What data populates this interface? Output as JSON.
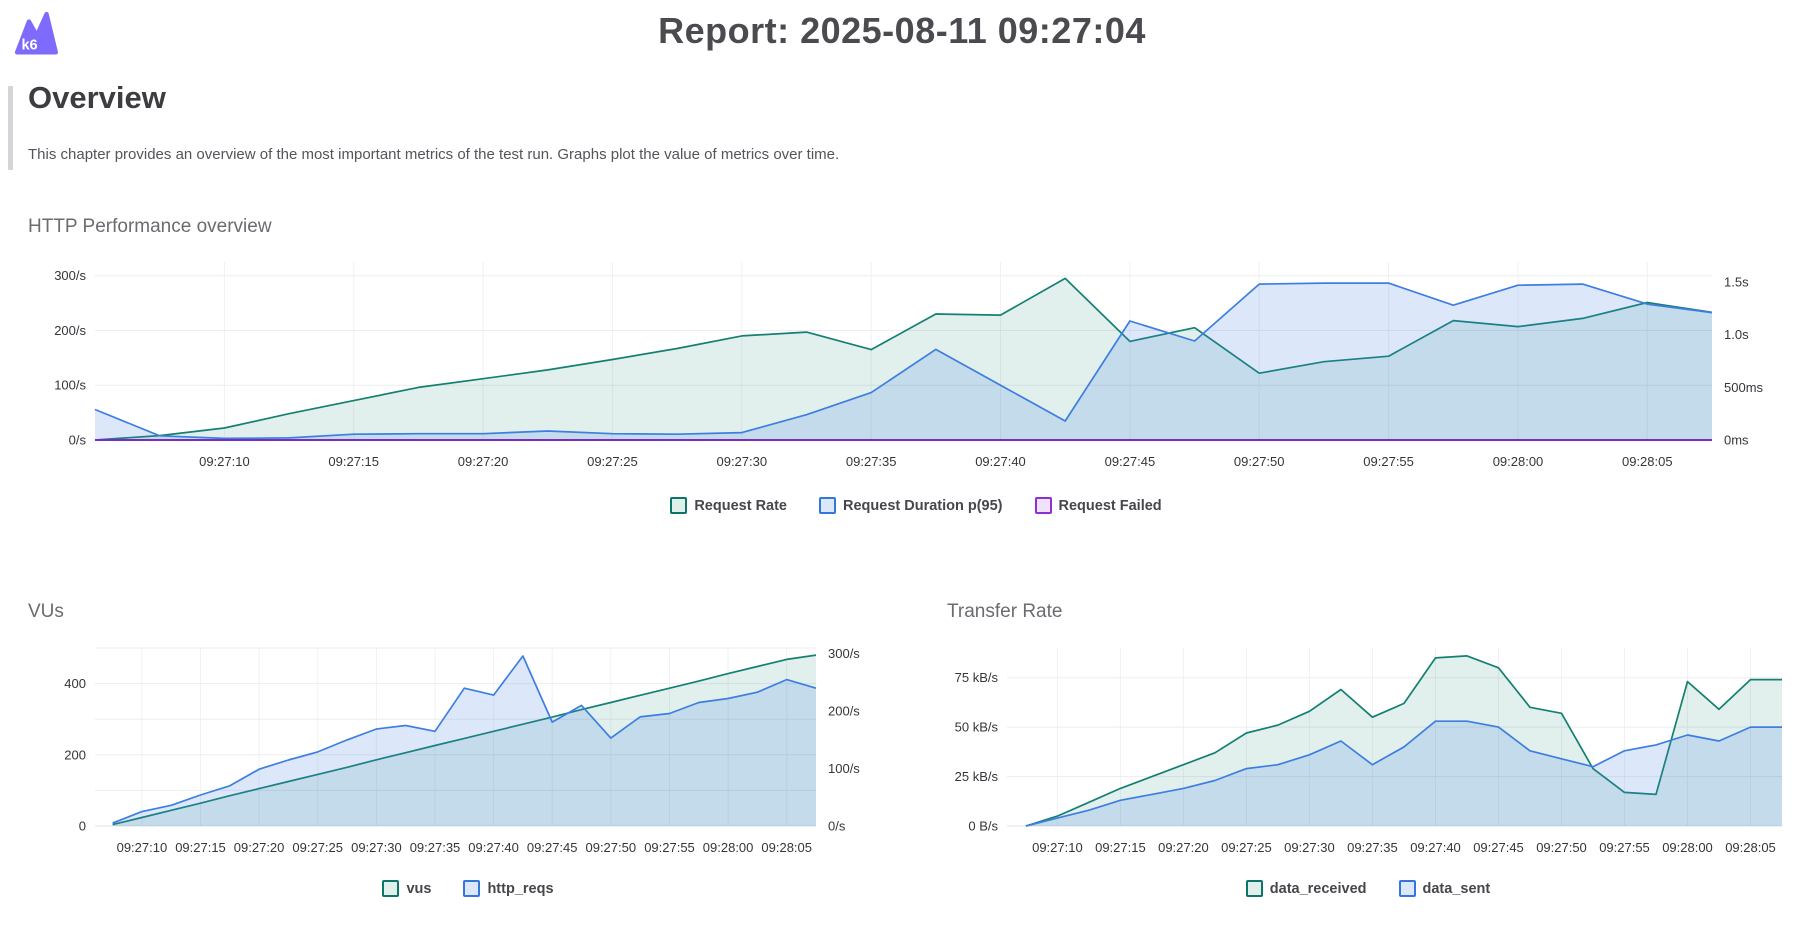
{
  "header": {
    "title": "Report: 2025-08-11 09:27:04",
    "logo_text": "k6",
    "logo_color": "#7e6bfb"
  },
  "overview": {
    "heading": "Overview",
    "description": "This chapter provides an overview of the most important metrics of the test run. Graphs plot the value of metrics over time."
  },
  "colors": {
    "teal": {
      "line": "#158072",
      "fill": "rgba(21,128,114,0.13)",
      "legend_border": "#0c7468",
      "legend_fill": "#e1efec"
    },
    "blue": {
      "line": "#3d7ee0",
      "fill": "rgba(61,126,224,0.18)",
      "legend_border": "#3575de",
      "legend_fill": "#dbe8fb"
    },
    "purple": {
      "line": "#7c2bbf",
      "fill": "none",
      "legend_border": "#8d2fd2",
      "legend_fill": "#efe2fa"
    }
  },
  "chart_data": [
    {
      "type": "area",
      "title": "HTTP Performance overview",
      "x_unit": "seconds after 09:27:00",
      "x_domain": [
        5,
        67.5
      ],
      "x": [
        5,
        7.5,
        10,
        12.5,
        15,
        17.5,
        20,
        22.5,
        25,
        27.5,
        30,
        32.5,
        35,
        37.5,
        40,
        42.5,
        45,
        47.5,
        50,
        52.5,
        55,
        57.5,
        60,
        62.5,
        65,
        67.5
      ],
      "x_ticks": [
        [
          10,
          "09:27:10"
        ],
        [
          15,
          "09:27:15"
        ],
        [
          20,
          "09:27:20"
        ],
        [
          25,
          "09:27:25"
        ],
        [
          30,
          "09:27:30"
        ],
        [
          35,
          "09:27:35"
        ],
        [
          40,
          "09:27:40"
        ],
        [
          45,
          "09:27:45"
        ],
        [
          50,
          "09:27:50"
        ],
        [
          55,
          "09:27:55"
        ],
        [
          60,
          "09:28:00"
        ],
        [
          65,
          "09:28:05"
        ]
      ],
      "left_axis": {
        "label": "requests per second",
        "domain": [
          0,
          325
        ],
        "ticks": [
          [
            0,
            "0/s"
          ],
          [
            100,
            "100/s"
          ],
          [
            200,
            "200/s"
          ],
          [
            300,
            "300/s"
          ]
        ],
        "grid": [
          100,
          200,
          300
        ]
      },
      "right_axis": {
        "label": "request duration",
        "domain": [
          0,
          1690
        ],
        "ticks": [
          [
            0,
            "0ms"
          ],
          [
            500,
            "500ms"
          ],
          [
            1000,
            "1.0s"
          ],
          [
            1500,
            "1.5s"
          ]
        ]
      },
      "series": [
        {
          "name": "Request Rate",
          "color": "teal",
          "axis": "left",
          "values": [
            0,
            8,
            22,
            48,
            72,
            96,
            112,
            128,
            147,
            167,
            190,
            197,
            165,
            230,
            228,
            295,
            180,
            205,
            122,
            143,
            153,
            218,
            207,
            222,
            251,
            233
          ]
        },
        {
          "name": "Request Duration p(95)",
          "color": "blue",
          "axis": "right",
          "values": [
            290,
            40,
            15,
            20,
            55,
            60,
            60,
            85,
            60,
            55,
            70,
            240,
            450,
            860,
            520,
            180,
            1130,
            940,
            1480,
            1490,
            1490,
            1280,
            1470,
            1480,
            1290,
            1210
          ]
        },
        {
          "name": "Request Failed",
          "color": "purple",
          "axis": "left",
          "width": 2,
          "values": [
            0,
            0,
            0,
            0,
            0,
            0,
            0,
            0,
            0,
            0,
            0,
            0,
            0,
            0,
            0,
            0,
            0,
            0,
            0,
            0,
            0,
            0,
            0,
            0,
            0,
            0
          ]
        }
      ]
    },
    {
      "type": "area",
      "title": "VUs",
      "x_unit": "seconds after 09:27:00",
      "x_domain": [
        6,
        67.5
      ],
      "x": [
        7.5,
        10,
        12.5,
        15,
        17.5,
        20,
        22.5,
        25,
        27.5,
        30,
        32.5,
        35,
        37.5,
        40,
        42.5,
        45,
        47.5,
        50,
        52.5,
        55,
        57.5,
        60,
        62.5,
        65,
        67.5
      ],
      "x_ticks": [
        [
          10,
          "09:27:10"
        ],
        [
          15,
          "09:27:15"
        ],
        [
          20,
          "09:27:20"
        ],
        [
          25,
          "09:27:25"
        ],
        [
          30,
          "09:27:30"
        ],
        [
          35,
          "09:27:35"
        ],
        [
          40,
          "09:27:40"
        ],
        [
          45,
          "09:27:45"
        ],
        [
          50,
          "09:27:50"
        ],
        [
          55,
          "09:27:55"
        ],
        [
          60,
          "09:28:00"
        ],
        [
          65,
          "09:28:05"
        ]
      ],
      "left_axis": {
        "label": "virtual users",
        "domain": [
          0,
          500
        ],
        "ticks": [
          [
            0,
            "0"
          ],
          [
            200,
            "200"
          ],
          [
            400,
            "400"
          ]
        ],
        "grid": [
          100,
          200,
          300,
          400,
          500
        ]
      },
      "right_axis": {
        "label": "requests per second",
        "domain": [
          0,
          310
        ],
        "ticks": [
          [
            0,
            "0/s"
          ],
          [
            100,
            "100/s"
          ],
          [
            200,
            "200/s"
          ],
          [
            300,
            "300/s"
          ]
        ]
      },
      "series": [
        {
          "name": "vus",
          "color": "teal",
          "axis": "left",
          "values": [
            4,
            24,
            44,
            64,
            85,
            105,
            125,
            145,
            165,
            186,
            206,
            226,
            246,
            266,
            286,
            306,
            327,
            347,
            367,
            387,
            407,
            428,
            448,
            468,
            480
          ]
        },
        {
          "name": "http_reqs",
          "color": "blue",
          "axis": "right",
          "values": [
            5,
            25,
            36,
            54,
            70,
            99,
            115,
            129,
            150,
            169,
            175,
            165,
            240,
            228,
            296,
            181,
            210,
            153,
            190,
            196,
            215,
            222,
            233,
            255,
            240
          ]
        }
      ]
    },
    {
      "type": "area",
      "title": "Transfer Rate",
      "x_unit": "seconds after 09:27:00",
      "x_domain": [
        6,
        67.5
      ],
      "x": [
        7.5,
        10,
        12.5,
        15,
        17.5,
        20,
        22.5,
        25,
        27.5,
        30,
        32.5,
        35,
        37.5,
        40,
        42.5,
        45,
        47.5,
        50,
        52.5,
        55,
        57.5,
        60,
        62.5,
        65,
        67.5
      ],
      "x_ticks": [
        [
          10,
          "09:27:10"
        ],
        [
          15,
          "09:27:15"
        ],
        [
          20,
          "09:27:20"
        ],
        [
          25,
          "09:27:25"
        ],
        [
          30,
          "09:27:30"
        ],
        [
          35,
          "09:27:35"
        ],
        [
          40,
          "09:27:40"
        ],
        [
          45,
          "09:27:45"
        ],
        [
          50,
          "09:27:50"
        ],
        [
          55,
          "09:27:55"
        ],
        [
          60,
          "09:28:00"
        ],
        [
          65,
          "09:28:05"
        ]
      ],
      "left_axis": {
        "label": "kilobytes per second",
        "domain": [
          0,
          90
        ],
        "ticks": [
          [
            0,
            "0 B/s"
          ],
          [
            25,
            "25 kB/s"
          ],
          [
            50,
            "50 kB/s"
          ],
          [
            75,
            "75 kB/s"
          ]
        ],
        "grid": [
          25,
          50,
          75
        ]
      },
      "right_axis": null,
      "series": [
        {
          "name": "data_received",
          "color": "teal",
          "axis": "left",
          "values": [
            0,
            5,
            12,
            19,
            25,
            31,
            37,
            47,
            51,
            58,
            69,
            55,
            62,
            85,
            86,
            80,
            60,
            57,
            29,
            17,
            16,
            73,
            59,
            74,
            74
          ]
        },
        {
          "name": "data_sent",
          "color": "blue",
          "axis": "left",
          "values": [
            0,
            4,
            8,
            13,
            16,
            19,
            23,
            29,
            31,
            36,
            43,
            31,
            40,
            53,
            53,
            50,
            38,
            34,
            30,
            38,
            41,
            46,
            43,
            50,
            50
          ]
        }
      ]
    }
  ]
}
